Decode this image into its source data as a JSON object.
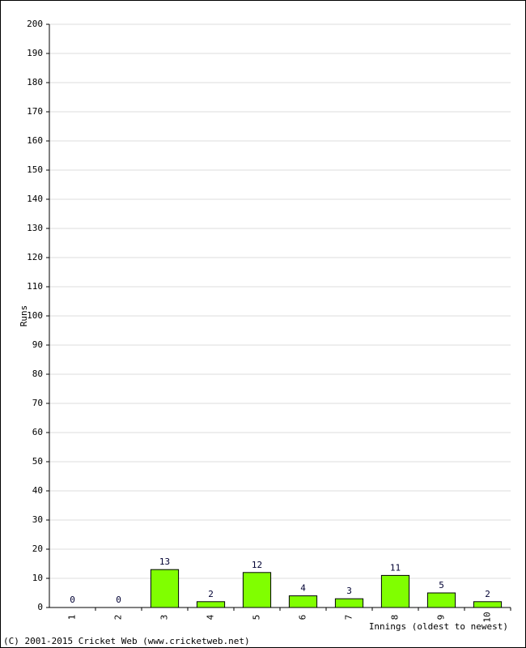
{
  "chart_data": {
    "type": "bar",
    "y_label": "Runs",
    "x_label": "Innings (oldest to newest)",
    "credit": "(C) 2001-2015 Cricket Web (www.cricketweb.net)",
    "categories": [
      "1",
      "2",
      "3",
      "4",
      "5",
      "6",
      "7",
      "8",
      "9",
      "10"
    ],
    "values": [
      0,
      0,
      13,
      2,
      12,
      4,
      3,
      11,
      5,
      2
    ],
    "color": "#80ff00",
    "ylim": [
      0,
      200
    ],
    "yticks": [
      0,
      10,
      20,
      30,
      40,
      50,
      60,
      70,
      80,
      90,
      100,
      110,
      120,
      130,
      140,
      150,
      160,
      170,
      180,
      190,
      200
    ],
    "grid": true
  }
}
